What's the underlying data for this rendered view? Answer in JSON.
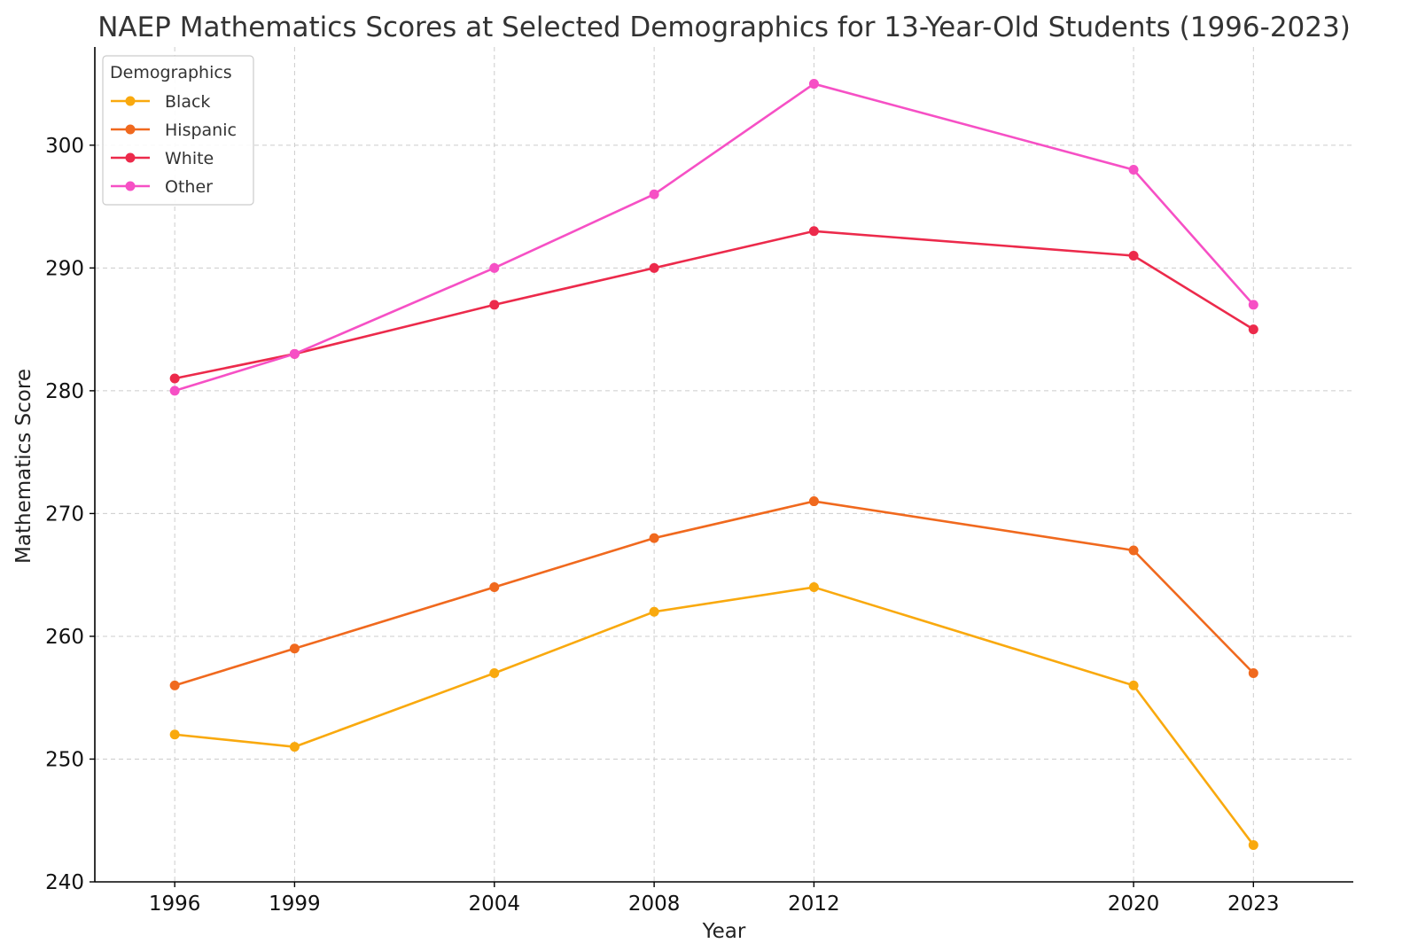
{
  "chart_data": {
    "type": "line",
    "title": "NAEP Mathematics Scores at Selected Demographics for 13-Year-Old Students (1996-2023)",
    "xlabel": "Year",
    "ylabel": "Mathematics Score",
    "x": [
      1996,
      1999,
      2004,
      2008,
      2012,
      2020,
      2023
    ],
    "xlim": [
      1994,
      2025.5
    ],
    "ylim": [
      240,
      308
    ],
    "yticks": [
      240,
      250,
      260,
      270,
      280,
      290,
      300
    ],
    "grid": true,
    "legend": {
      "title": "Demographics",
      "placement": "top-left"
    },
    "series": [
      {
        "name": "Black",
        "color": "#F9A90E",
        "values": [
          252,
          251,
          257,
          262,
          264,
          256,
          243
        ]
      },
      {
        "name": "Hispanic",
        "color": "#F0691E",
        "values": [
          256,
          259,
          264,
          268,
          271,
          267,
          257
        ]
      },
      {
        "name": "White",
        "color": "#EC2A4B",
        "values": [
          281,
          283,
          287,
          290,
          293,
          291,
          285
        ]
      },
      {
        "name": "Other",
        "color": "#F650C5",
        "values": [
          280,
          283,
          290,
          296,
          305,
          298,
          287
        ]
      }
    ]
  }
}
